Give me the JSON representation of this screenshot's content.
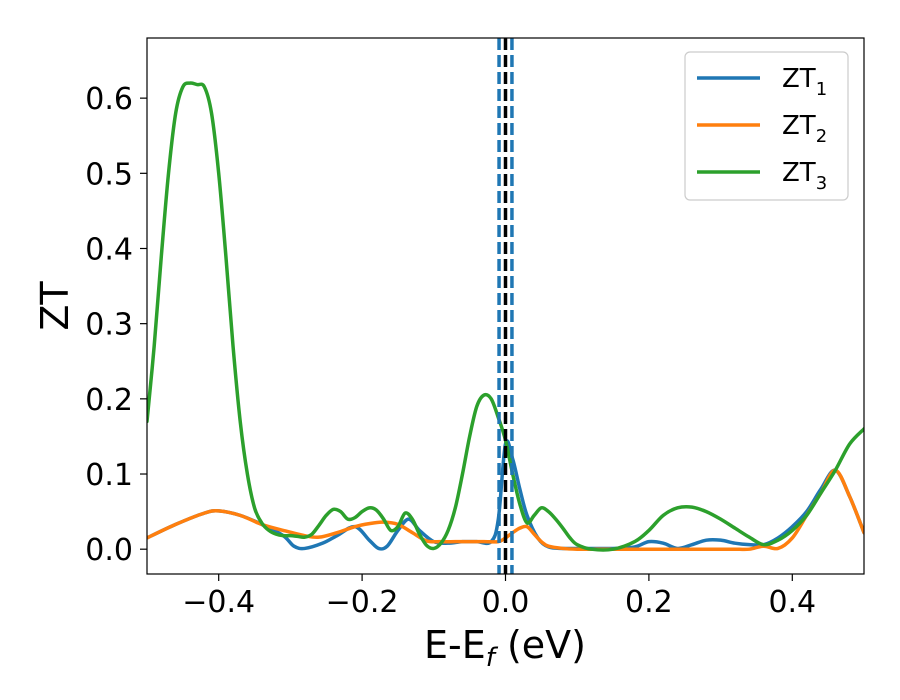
{
  "chart_data": {
    "type": "line",
    "xlabel": "E-E",
    "xlabel_sub": "f",
    "xlabel_unit": " (eV)",
    "ylabel": "ZT",
    "xlim": [
      -0.5,
      0.5
    ],
    "ylim": [
      -0.033,
      0.68
    ],
    "xticks": [
      -0.4,
      -0.2,
      0.0,
      0.2,
      0.4
    ],
    "xtick_labels": [
      "−0.4",
      "−0.2",
      "0.0",
      "0.2",
      "0.4"
    ],
    "yticks": [
      0.0,
      0.1,
      0.2,
      0.3,
      0.4,
      0.5,
      0.6
    ],
    "ytick_labels": [
      "0.0",
      "0.1",
      "0.2",
      "0.3",
      "0.4",
      "0.5",
      "0.6"
    ],
    "grid": false,
    "legend_position": "top-right",
    "vertical_lines": [
      {
        "x": -0.009,
        "style": "dashed",
        "color": "#1f77b4"
      },
      {
        "x": 0.009,
        "style": "dashed",
        "color": "#1f77b4"
      },
      {
        "x": 0.0,
        "style": "dashed",
        "color": "#000000"
      }
    ],
    "series": [
      {
        "name": "ZT",
        "sub": "1",
        "color": "#1f77b4",
        "x": [
          -0.5,
          -0.46,
          -0.42,
          -0.4,
          -0.37,
          -0.34,
          -0.31,
          -0.295,
          -0.28,
          -0.255,
          -0.235,
          -0.21,
          -0.19,
          -0.177,
          -0.165,
          -0.15,
          -0.135,
          -0.12,
          -0.1,
          -0.08,
          -0.06,
          -0.04,
          -0.02,
          -0.01,
          0.0,
          0.01,
          0.02,
          0.03,
          0.045,
          0.06,
          0.08,
          0.1,
          0.12,
          0.15,
          0.18,
          0.2,
          0.22,
          0.24,
          0.26,
          0.28,
          0.3,
          0.32,
          0.34,
          0.36,
          0.38,
          0.4,
          0.42,
          0.44,
          0.46,
          0.48,
          0.5
        ],
        "y": [
          0.015,
          0.033,
          0.048,
          0.051,
          0.045,
          0.033,
          0.018,
          0.004,
          0.001,
          0.008,
          0.018,
          0.03,
          0.012,
          0.001,
          0.004,
          0.025,
          0.04,
          0.025,
          0.01,
          0.008,
          0.01,
          0.01,
          0.01,
          0.04,
          0.14,
          0.12,
          0.08,
          0.045,
          0.015,
          0.003,
          0.001,
          0.001,
          0.001,
          0.001,
          0.003,
          0.01,
          0.008,
          0.001,
          0.006,
          0.012,
          0.012,
          0.008,
          0.006,
          0.006,
          0.015,
          0.03,
          0.05,
          0.08,
          0.105,
          0.07,
          0.022
        ]
      },
      {
        "name": "ZT",
        "sub": "2",
        "color": "#ff7f0e",
        "x": [
          -0.5,
          -0.46,
          -0.42,
          -0.4,
          -0.37,
          -0.34,
          -0.31,
          -0.28,
          -0.26,
          -0.235,
          -0.21,
          -0.19,
          -0.17,
          -0.15,
          -0.13,
          -0.11,
          -0.09,
          -0.07,
          -0.05,
          -0.03,
          -0.01,
          0.0,
          0.01,
          0.02,
          0.03,
          0.04,
          0.05,
          0.06,
          0.08,
          0.1,
          0.12,
          0.15,
          0.18,
          0.2,
          0.22,
          0.24,
          0.26,
          0.28,
          0.3,
          0.32,
          0.34,
          0.36,
          0.38,
          0.4,
          0.42,
          0.44,
          0.46,
          0.48,
          0.5
        ],
        "y": [
          0.015,
          0.033,
          0.048,
          0.051,
          0.045,
          0.033,
          0.025,
          0.018,
          0.016,
          0.022,
          0.03,
          0.034,
          0.036,
          0.033,
          0.022,
          0.011,
          0.01,
          0.01,
          0.01,
          0.01,
          0.01,
          0.015,
          0.022,
          0.028,
          0.03,
          0.02,
          0.01,
          0.004,
          0.001,
          0.0,
          0.0,
          0.0,
          0.0,
          0.0,
          0.0,
          0.0,
          0.0,
          0.0,
          0.0,
          0.0,
          0.0,
          0.004,
          0.001,
          0.015,
          0.045,
          0.075,
          0.105,
          0.07,
          0.022
        ]
      },
      {
        "name": "ZT",
        "sub": "3",
        "color": "#2ca02c",
        "x": [
          -0.5,
          -0.49,
          -0.48,
          -0.47,
          -0.46,
          -0.45,
          -0.44,
          -0.43,
          -0.42,
          -0.41,
          -0.4,
          -0.39,
          -0.38,
          -0.37,
          -0.36,
          -0.35,
          -0.34,
          -0.33,
          -0.32,
          -0.31,
          -0.3,
          -0.29,
          -0.28,
          -0.27,
          -0.26,
          -0.25,
          -0.24,
          -0.23,
          -0.22,
          -0.21,
          -0.2,
          -0.19,
          -0.18,
          -0.17,
          -0.16,
          -0.15,
          -0.14,
          -0.13,
          -0.12,
          -0.11,
          -0.1,
          -0.09,
          -0.08,
          -0.07,
          -0.06,
          -0.05,
          -0.04,
          -0.03,
          -0.02,
          -0.01,
          0.0,
          0.01,
          0.02,
          0.03,
          0.04,
          0.05,
          0.06,
          0.07,
          0.08,
          0.09,
          0.1,
          0.12,
          0.15,
          0.18,
          0.2,
          0.22,
          0.24,
          0.26,
          0.28,
          0.3,
          0.32,
          0.34,
          0.36,
          0.38,
          0.4,
          0.42,
          0.44,
          0.46,
          0.48,
          0.5
        ],
        "y": [
          0.17,
          0.27,
          0.39,
          0.5,
          0.58,
          0.615,
          0.62,
          0.618,
          0.615,
          0.58,
          0.5,
          0.39,
          0.27,
          0.17,
          0.1,
          0.055,
          0.035,
          0.025,
          0.02,
          0.018,
          0.018,
          0.017,
          0.016,
          0.02,
          0.032,
          0.045,
          0.053,
          0.05,
          0.04,
          0.042,
          0.05,
          0.055,
          0.052,
          0.04,
          0.025,
          0.03,
          0.048,
          0.04,
          0.02,
          0.005,
          0.001,
          0.008,
          0.025,
          0.055,
          0.1,
          0.15,
          0.19,
          0.205,
          0.2,
          0.175,
          0.145,
          0.1,
          0.06,
          0.035,
          0.045,
          0.055,
          0.05,
          0.04,
          0.028,
          0.015,
          0.006,
          0.0,
          0.0,
          0.01,
          0.025,
          0.045,
          0.055,
          0.056,
          0.05,
          0.04,
          0.028,
          0.016,
          0.006,
          0.012,
          0.025,
          0.045,
          0.075,
          0.105,
          0.14,
          0.16
        ]
      }
    ]
  }
}
